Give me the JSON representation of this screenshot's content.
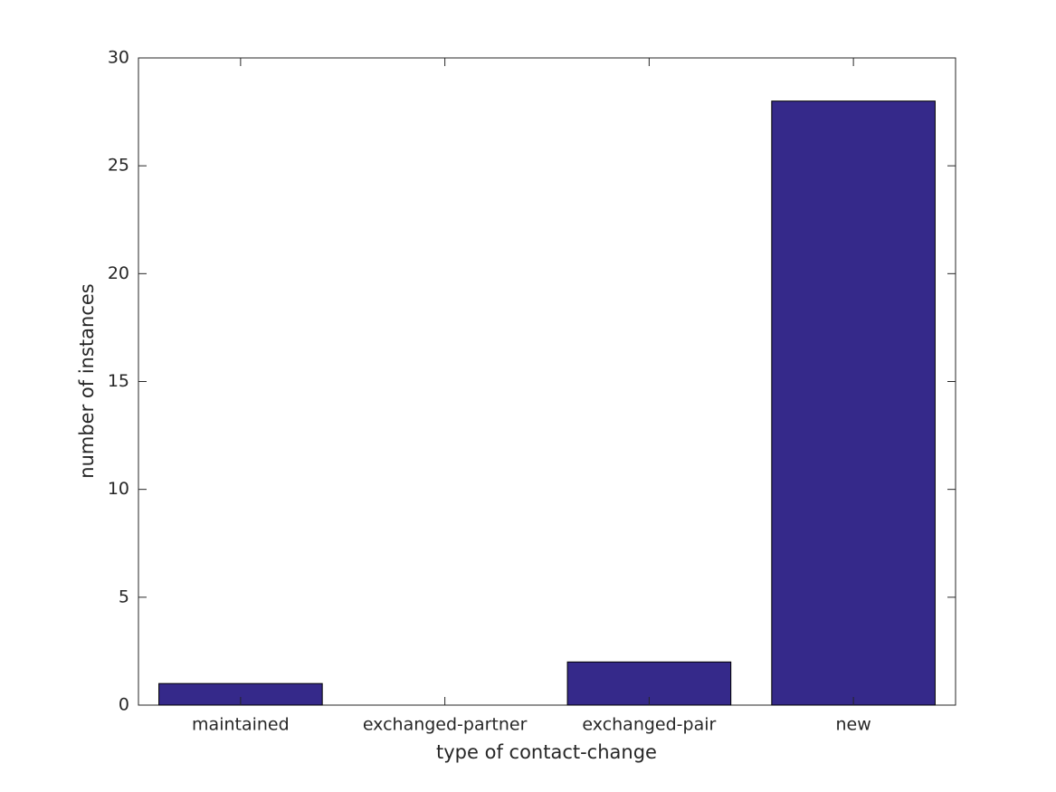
{
  "chart_data": {
    "type": "bar",
    "x_label": "type of contact-change",
    "y_label": "number of instances",
    "categories": [
      "maintained",
      "exchanged-partner",
      "exchanged-pair",
      "new"
    ],
    "values": [
      1,
      0,
      2,
      28
    ],
    "color": "#35298a",
    "ylim": [
      0,
      30
    ],
    "yticks": [
      0,
      5,
      10,
      15,
      20,
      25,
      30
    ],
    "grid": false
  }
}
